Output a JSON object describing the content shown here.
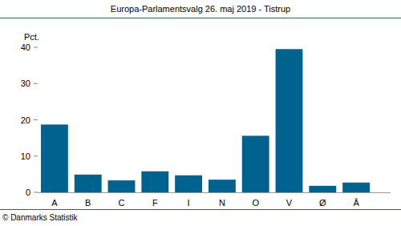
{
  "chart_data": {
    "type": "bar",
    "title": "Europa-Parlamentsvalg 26. maj 2019 - Tistrup",
    "y_label": "Pct.",
    "source": "© Danmarks Statistik",
    "categories": [
      "A",
      "B",
      "C",
      "F",
      "I",
      "N",
      "O",
      "V",
      "Ø",
      "Å"
    ],
    "values": [
      18.7,
      4.9,
      3.3,
      5.8,
      4.7,
      3.5,
      15.6,
      39.5,
      1.8,
      2.7
    ],
    "color": "#00628f",
    "ylim": [
      0,
      40
    ],
    "yticks": [
      0,
      10,
      20,
      30,
      40
    ],
    "grid": false
  }
}
